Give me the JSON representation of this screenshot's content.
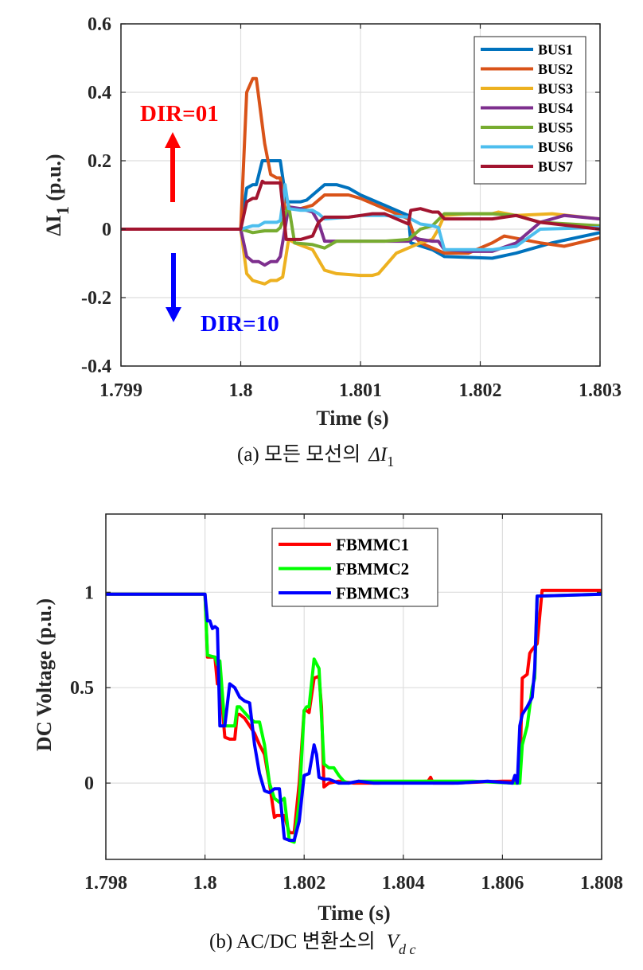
{
  "chart_data": [
    {
      "type": "line",
      "caption": "(a)  모든  모선의",
      "caption_symbol": "ΔI",
      "caption_subscript": "1",
      "xlabel": "Time (s)",
      "ylabel": "ΔI",
      "ylabel_subscript": "1",
      "ylabel_unit": "(p.u.)",
      "xlim": [
        1.799,
        1.803
      ],
      "ylim": [
        -0.4,
        0.6
      ],
      "xticks": [
        1.799,
        1.8,
        1.801,
        1.802,
        1.803
      ],
      "xtick_labels": [
        "1.799",
        "1.8",
        "1.801",
        "1.802",
        "1.803"
      ],
      "yticks": [
        -0.4,
        -0.2,
        0,
        0.2,
        0.4,
        0.6
      ],
      "ytick_labels": [
        "-0.4",
        "-0.2",
        "0",
        "0.2",
        "0.4",
        "0.6"
      ],
      "grid": true,
      "legend_position": "top-right",
      "annotations": [
        {
          "text": "DIR=01",
          "color": "#ff0000",
          "arrow": "up"
        },
        {
          "text": "DIR=10",
          "color": "#0000ff",
          "arrow": "down"
        }
      ],
      "series": [
        {
          "name": "BUS1",
          "color": "#0072bd",
          "x": [
            1.799,
            1.8,
            1.80005,
            1.8001,
            1.80013,
            1.80018,
            1.8002,
            1.8003,
            1.80033,
            1.80038,
            1.8005,
            1.80055,
            1.8007,
            1.8008,
            1.8009,
            1.801,
            1.8012,
            1.8014,
            1.80142,
            1.8016,
            1.8017,
            1.8021,
            1.8023,
            1.8026,
            1.803
          ],
          "y": [
            0,
            0,
            0.12,
            0.13,
            0.13,
            0.2,
            0.2,
            0.2,
            0.2,
            0.08,
            0.08,
            0.085,
            0.13,
            0.13,
            0.12,
            0.1,
            0.07,
            0.04,
            -0.04,
            -0.06,
            -0.08,
            -0.085,
            -0.07,
            -0.04,
            -0.01
          ]
        },
        {
          "name": "BUS2",
          "color": "#d95319",
          "x": [
            1.799,
            1.8,
            1.80005,
            1.8001,
            1.80013,
            1.8002,
            1.80025,
            1.8003,
            1.80033,
            1.80037,
            1.8005,
            1.8006,
            1.8007,
            1.8008,
            1.8009,
            1.801,
            1.8012,
            1.8014,
            1.80145,
            1.8015,
            1.8017,
            1.80175,
            1.8019,
            1.8021,
            1.8022,
            1.8025,
            1.8027,
            1.803
          ],
          "y": [
            0,
            0,
            0.4,
            0.44,
            0.44,
            0.25,
            0.16,
            0.15,
            0.15,
            0.06,
            0.06,
            0.07,
            0.1,
            0.1,
            0.1,
            0.09,
            0.06,
            0.03,
            -0.02,
            -0.04,
            -0.07,
            -0.07,
            -0.07,
            -0.04,
            -0.02,
            -0.04,
            -0.05,
            -0.025
          ]
        },
        {
          "name": "BUS3",
          "color": "#edb120",
          "x": [
            1.799,
            1.8,
            1.80005,
            1.8001,
            1.8002,
            1.80025,
            1.8003,
            1.80035,
            1.8004,
            1.80045,
            1.8006,
            1.8007,
            1.8008,
            1.801,
            1.8011,
            1.80115,
            1.8013,
            1.8015,
            1.8016,
            1.80165,
            1.8017,
            1.8019,
            1.8021,
            1.80215,
            1.8023,
            1.8026,
            1.803
          ],
          "y": [
            0,
            0,
            -0.13,
            -0.15,
            -0.16,
            -0.15,
            -0.15,
            -0.14,
            -0.03,
            -0.04,
            -0.06,
            -0.12,
            -0.13,
            -0.135,
            -0.135,
            -0.13,
            -0.07,
            -0.04,
            -0.03,
            0.0,
            0.04,
            0.045,
            0.045,
            0.05,
            0.04,
            0.045,
            0.03
          ]
        },
        {
          "name": "BUS4",
          "color": "#7e2f8e",
          "x": [
            1.799,
            1.8,
            1.80005,
            1.8001,
            1.80015,
            1.8002,
            1.80025,
            1.8003,
            1.80033,
            1.8004,
            1.8005,
            1.8006,
            1.80065,
            1.8007,
            1.801,
            1.8012,
            1.8014,
            1.80145,
            1.8015,
            1.8016,
            1.80165,
            1.8017,
            1.8019,
            1.8021,
            1.8023,
            1.8025,
            1.8027,
            1.803
          ],
          "y": [
            0,
            0,
            -0.08,
            -0.095,
            -0.095,
            -0.105,
            -0.095,
            -0.095,
            -0.08,
            0.065,
            0.06,
            0.05,
            0.02,
            -0.035,
            -0.035,
            -0.035,
            -0.035,
            -0.025,
            -0.03,
            -0.035,
            -0.035,
            -0.06,
            -0.065,
            -0.065,
            -0.04,
            0.02,
            0.04,
            0.03
          ]
        },
        {
          "name": "BUS5",
          "color": "#77ac30",
          "x": [
            1.799,
            1.8,
            1.80005,
            1.8001,
            1.8002,
            1.80025,
            1.8003,
            1.80033,
            1.8004,
            1.80045,
            1.8006,
            1.8007,
            1.8008,
            1.801,
            1.8012,
            1.8014,
            1.8015,
            1.8016,
            1.8017,
            1.8019,
            1.8021,
            1.8023,
            1.8025,
            1.803
          ],
          "y": [
            0,
            0,
            -0.005,
            -0.01,
            -0.005,
            -0.005,
            -0.005,
            0.005,
            0.07,
            -0.04,
            -0.045,
            -0.055,
            -0.035,
            -0.035,
            -0.035,
            -0.03,
            0.0,
            0.01,
            0.045,
            0.045,
            0.045,
            0.04,
            0.02,
            0.01
          ]
        },
        {
          "name": "BUS6",
          "color": "#4dbeee",
          "x": [
            1.799,
            1.8,
            1.80005,
            1.8001,
            1.80015,
            1.8002,
            1.8003,
            1.80033,
            1.80037,
            1.8004,
            1.8005,
            1.8006,
            1.80065,
            1.8007,
            1.8009,
            1.801,
            1.8012,
            1.8014,
            1.80142,
            1.8015,
            1.8016,
            1.80165,
            1.8017,
            1.8019,
            1.8021,
            1.8023,
            1.8025,
            1.803
          ],
          "y": [
            0,
            0,
            0.005,
            0.01,
            0.01,
            0.02,
            0.02,
            0.025,
            0.13,
            0.06,
            0.055,
            0.055,
            0.045,
            0.03,
            0.035,
            0.04,
            0.04,
            0.035,
            0.03,
            0.015,
            0.01,
            0.005,
            -0.06,
            -0.06,
            -0.06,
            -0.05,
            0.0,
            0.005
          ]
        },
        {
          "name": "BUS7",
          "color": "#a2142f",
          "x": [
            1.799,
            1.8,
            1.80005,
            1.8001,
            1.80013,
            1.80018,
            1.8002,
            1.8003,
            1.80033,
            1.80038,
            1.8005,
            1.8006,
            1.80065,
            1.8007,
            1.8009,
            1.801,
            1.8011,
            1.8012,
            1.8013,
            1.8014,
            1.80142,
            1.8015,
            1.8016,
            1.80165,
            1.8017,
            1.8019,
            1.8021,
            1.8023,
            1.8025,
            1.803
          ],
          "y": [
            0,
            0,
            0.08,
            0.09,
            0.09,
            0.14,
            0.135,
            0.135,
            0.135,
            -0.03,
            -0.03,
            -0.02,
            0.02,
            0.035,
            0.035,
            0.04,
            0.045,
            0.045,
            0.03,
            0.015,
            0.055,
            0.06,
            0.05,
            0.05,
            0.03,
            0.03,
            0.03,
            0.04,
            0.02,
            0.0
          ]
        }
      ]
    },
    {
      "type": "line",
      "caption": "(b)  AC/DC  변환소의",
      "caption_symbol": "V",
      "caption_subscript": "d c",
      "xlabel": "Time (s)",
      "ylabel": "DC Voltage (p.u.)",
      "xlim": [
        1.798,
        1.808
      ],
      "ylim": [
        -0.4,
        1.41
      ],
      "xticks": [
        1.798,
        1.8,
        1.802,
        1.804,
        1.806,
        1.808
      ],
      "xtick_labels": [
        "1.798",
        "1.8",
        "1.802",
        "1.804",
        "1.806",
        "1.808"
      ],
      "yticks": [
        0,
        0.5,
        1
      ],
      "ytick_labels": [
        "0",
        "0.5",
        "1"
      ],
      "grid": true,
      "legend_position": "top-center",
      "series": [
        {
          "name": "FBMMC1",
          "color": "#ff0000",
          "x": [
            1.798,
            1.8,
            1.80005,
            1.8002,
            1.80025,
            1.8003,
            1.8004,
            1.8005,
            1.8006,
            1.80065,
            1.8007,
            1.8008,
            1.8009,
            1.801,
            1.8011,
            1.8012,
            1.8013,
            1.8014,
            1.80145,
            1.8015,
            1.8016,
            1.8017,
            1.8018,
            1.8019,
            1.802,
            1.80205,
            1.8021,
            1.8022,
            1.8023,
            1.80235,
            1.8024,
            1.8025,
            1.8027,
            1.803,
            1.8035,
            1.8045,
            1.80455,
            1.8046,
            1.805,
            1.806,
            1.8062,
            1.80635,
            1.8064,
            1.8065,
            1.80655,
            1.8066,
            1.8067,
            1.8068,
            1.808
          ],
          "y": [
            0.99,
            0.99,
            0.66,
            0.66,
            0.52,
            0.55,
            0.24,
            0.23,
            0.23,
            0.36,
            0.36,
            0.34,
            0.3,
            0.26,
            0.2,
            0.15,
            0.0,
            -0.18,
            -0.17,
            -0.17,
            -0.17,
            -0.26,
            -0.26,
            0.0,
            0.38,
            0.38,
            0.37,
            0.55,
            0.56,
            0.4,
            -0.02,
            0.0,
            0.01,
            0.0,
            0.0,
            0.01,
            0.03,
            0.0,
            0.0,
            0.01,
            0.01,
            0.02,
            0.55,
            0.57,
            0.68,
            0.7,
            0.73,
            1.01,
            1.01
          ]
        },
        {
          "name": "FBMMC2",
          "color": "#00ff00",
          "x": [
            1.798,
            1.8,
            1.80005,
            1.8002,
            1.80025,
            1.8003,
            1.8004,
            1.8005,
            1.8006,
            1.80065,
            1.8007,
            1.8008,
            1.8009,
            1.801,
            1.8011,
            1.8012,
            1.8013,
            1.8014,
            1.8015,
            1.8016,
            1.8017,
            1.8018,
            1.8019,
            1.802,
            1.80205,
            1.8021,
            1.8022,
            1.8023,
            1.8024,
            1.8025,
            1.8026,
            1.8027,
            1.8028,
            1.8029,
            1.8031,
            1.8035,
            1.8038,
            1.8043,
            1.8054,
            1.8062,
            1.80635,
            1.8064,
            1.8065,
            1.8066,
            1.80665,
            1.8067,
            1.808
          ],
          "y": [
            0.99,
            0.99,
            0.67,
            0.66,
            0.62,
            0.64,
            0.3,
            0.3,
            0.3,
            0.4,
            0.4,
            0.37,
            0.34,
            0.32,
            0.32,
            0.2,
            0.0,
            -0.08,
            -0.1,
            -0.08,
            -0.3,
            -0.31,
            -0.1,
            0.38,
            0.4,
            0.4,
            0.65,
            0.6,
            0.1,
            0.08,
            0.08,
            0.04,
            0.01,
            0.0,
            0.01,
            0.01,
            0.01,
            0.01,
            0.01,
            0.0,
            0.0,
            0.2,
            0.3,
            0.5,
            0.55,
            0.98,
            0.99
          ]
        },
        {
          "name": "FBMMC3",
          "color": "#0000ff",
          "x": [
            1.798,
            1.8,
            1.80005,
            1.8001,
            1.80015,
            1.8002,
            1.80025,
            1.8003,
            1.80035,
            1.8004,
            1.8005,
            1.80055,
            1.8006,
            1.8007,
            1.8008,
            1.8009,
            1.801,
            1.8011,
            1.8012,
            1.8013,
            1.8014,
            1.8015,
            1.8016,
            1.8017,
            1.8018,
            1.8019,
            1.802,
            1.8021,
            1.8022,
            1.80225,
            1.8023,
            1.8024,
            1.8025,
            1.8026,
            1.8027,
            1.8029,
            1.8031,
            1.8034,
            1.8037,
            1.8041,
            1.8051,
            1.8057,
            1.8062,
            1.80625,
            1.8063,
            1.80635,
            1.8064,
            1.8065,
            1.8066,
            1.80665,
            1.8067,
            1.808
          ],
          "y": [
            0.99,
            0.99,
            0.85,
            0.85,
            0.81,
            0.82,
            0.81,
            0.3,
            0.3,
            0.3,
            0.52,
            0.51,
            0.5,
            0.45,
            0.43,
            0.42,
            0.2,
            0.05,
            -0.04,
            -0.05,
            -0.03,
            -0.03,
            -0.29,
            -0.3,
            -0.3,
            -0.2,
            0.04,
            0.05,
            0.2,
            0.15,
            0.03,
            0.02,
            0.02,
            0.01,
            0.0,
            0.0,
            0.01,
            0.0,
            0.0,
            0.0,
            0.0,
            0.01,
            0.0,
            0.04,
            0.0,
            0.3,
            0.36,
            0.4,
            0.45,
            0.6,
            0.98,
            0.99
          ]
        }
      ]
    }
  ]
}
